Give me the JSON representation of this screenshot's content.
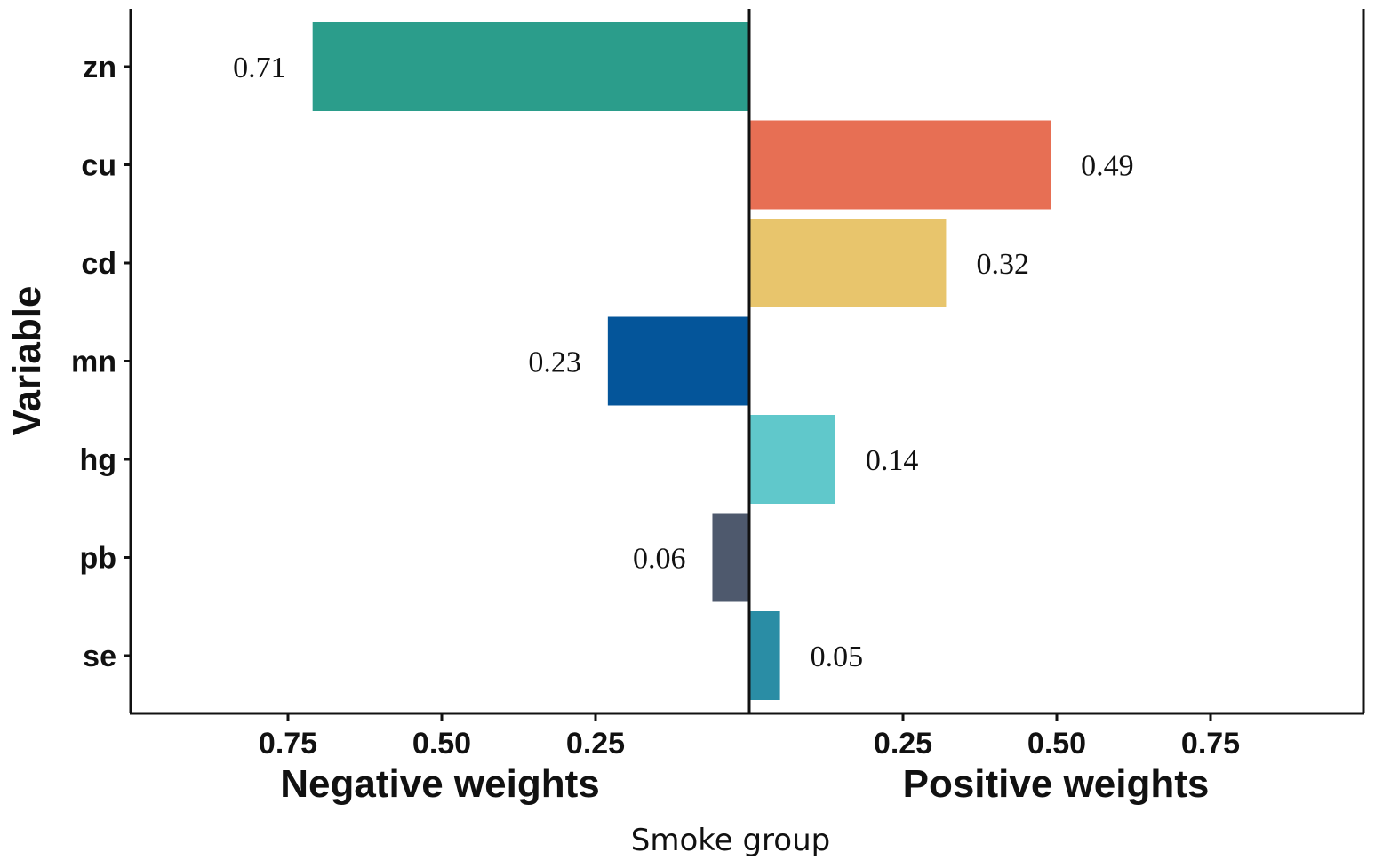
{
  "chart_data": {
    "type": "bar",
    "orientation": "horizontal",
    "ylabel": "Variable",
    "xlabel_negative": "Negative weights",
    "xlabel_positive": "Positive weights",
    "caption": "Smoke group",
    "xlim": [
      -1.0,
      1.0
    ],
    "ticks_negative": [
      "0.75",
      "0.50",
      "0.25"
    ],
    "ticks_positive": [
      "0.25",
      "0.50",
      "0.75"
    ],
    "tick_values": [
      -0.75,
      -0.5,
      -0.25,
      0.25,
      0.5,
      0.75
    ],
    "categories": [
      "zn",
      "cu",
      "cd",
      "mn",
      "hg",
      "pb",
      "se"
    ],
    "bars": [
      {
        "category": "zn",
        "value": -0.71,
        "label": "0.71",
        "color": "#2b9d8b"
      },
      {
        "category": "cu",
        "value": 0.49,
        "label": "0.49",
        "color": "#e76f54"
      },
      {
        "category": "cd",
        "value": 0.32,
        "label": "0.32",
        "color": "#e8c56c"
      },
      {
        "category": "mn",
        "value": -0.23,
        "label": "0.23",
        "color": "#04559a"
      },
      {
        "category": "hg",
        "value": 0.14,
        "label": "0.14",
        "color": "#60c8cb"
      },
      {
        "category": "pb",
        "value": -0.06,
        "label": "0.06",
        "color": "#4e596d"
      },
      {
        "category": "se",
        "value": 0.05,
        "label": "0.05",
        "color": "#2a8da5"
      }
    ]
  }
}
